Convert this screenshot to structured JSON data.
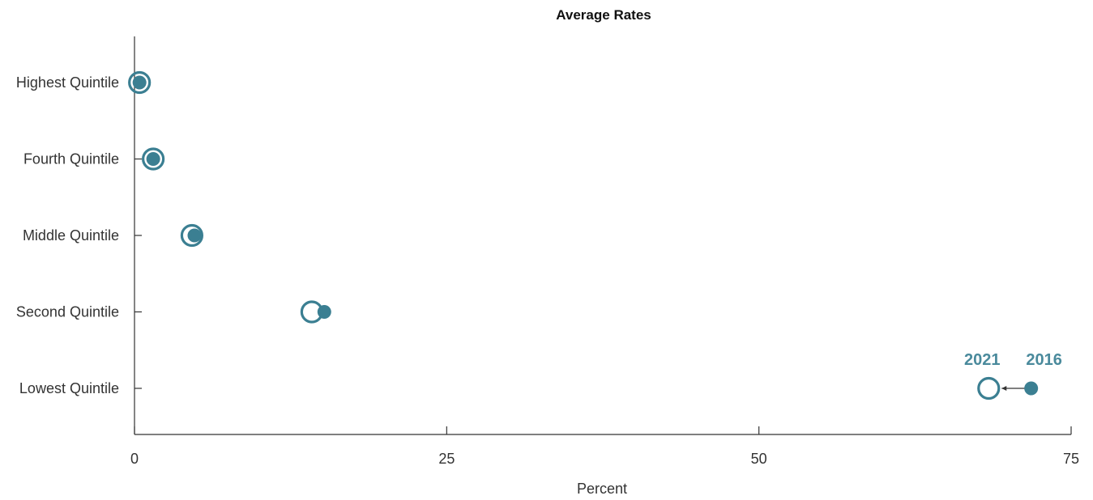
{
  "chart_data": {
    "type": "scatter",
    "title": "Average Rates",
    "xlabel": "Percent",
    "ylabel": "",
    "xlim": [
      0,
      75
    ],
    "xticks": [
      0,
      25,
      50,
      75
    ],
    "categories": [
      "Highest Quintile",
      "Fourth Quintile",
      "Middle Quintile",
      "Second Quintile",
      "Lowest Quintile"
    ],
    "series": [
      {
        "name": "2016",
        "values": [
          0.4,
          1.5,
          4.8,
          15.2,
          71.8
        ]
      },
      {
        "name": "2021",
        "values": [
          0.4,
          1.5,
          4.6,
          14.2,
          68.4
        ]
      }
    ],
    "annotation_category": "Lowest Quintile",
    "grid": false,
    "colors": {
      "marker": "#3b7f92",
      "label": "#4a8a9c",
      "axis": "#333333"
    }
  }
}
